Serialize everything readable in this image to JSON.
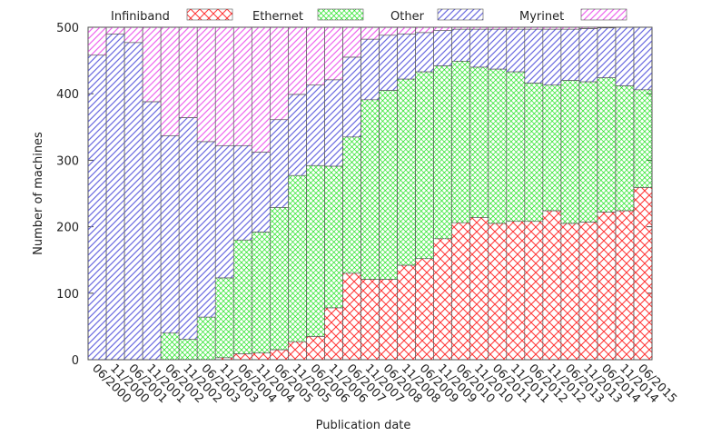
{
  "chart_data": {
    "type": "stacked_bar",
    "xlabel": "Publication date",
    "ylabel": "Number of machines",
    "categories": [
      "06/2000",
      "11/2000",
      "06/2001",
      "11/2001",
      "06/2002",
      "11/2002",
      "06/2003",
      "11/2003",
      "06/2004",
      "11/2004",
      "06/2005",
      "11/2005",
      "06/2006",
      "11/2006",
      "06/2007",
      "11/2007",
      "06/2008",
      "11/2008",
      "06/2009",
      "11/2009",
      "06/2010",
      "11/2010",
      "06/2011",
      "11/2011",
      "06/2012",
      "11/2012",
      "06/2013",
      "11/2013",
      "06/2014",
      "11/2014",
      "06/2015"
    ],
    "series": [
      {
        "name": "Infiniband",
        "color": "#ff3333",
        "values": [
          0,
          0,
          0,
          0,
          0,
          0,
          0,
          3,
          9,
          10,
          15,
          27,
          35,
          78,
          130,
          121,
          121,
          142,
          152,
          182,
          206,
          214,
          205,
          208,
          208,
          224,
          205,
          207,
          222,
          224,
          259
        ]
      },
      {
        "name": "Ethernet",
        "color": "#00dd00",
        "values": [
          0,
          0,
          0,
          0,
          40,
          31,
          64,
          120,
          171,
          182,
          214,
          250,
          257,
          213,
          205,
          270,
          284,
          280,
          281,
          260,
          243,
          226,
          232,
          225,
          208,
          189,
          215,
          211,
          202,
          188,
          147
        ]
      },
      {
        "name": "Other",
        "color": "#6a6ae0",
        "values": [
          458,
          490,
          477,
          388,
          297,
          333,
          264,
          199,
          142,
          120,
          132,
          122,
          121,
          130,
          120,
          91,
          83,
          68,
          59,
          53,
          48,
          57,
          60,
          64,
          81,
          84,
          77,
          80,
          75,
          88,
          94
        ]
      },
      {
        "name": "Myrinet",
        "color": "#ee66ee",
        "values": [
          42,
          10,
          23,
          112,
          163,
          136,
          172,
          178,
          178,
          188,
          139,
          101,
          87,
          79,
          45,
          18,
          12,
          10,
          8,
          5,
          3,
          3,
          3,
          3,
          3,
          3,
          3,
          2,
          1,
          0,
          0
        ]
      }
    ],
    "ylim": [
      0,
      500
    ],
    "yticks": [
      0,
      100,
      200,
      300,
      400,
      500
    ]
  }
}
